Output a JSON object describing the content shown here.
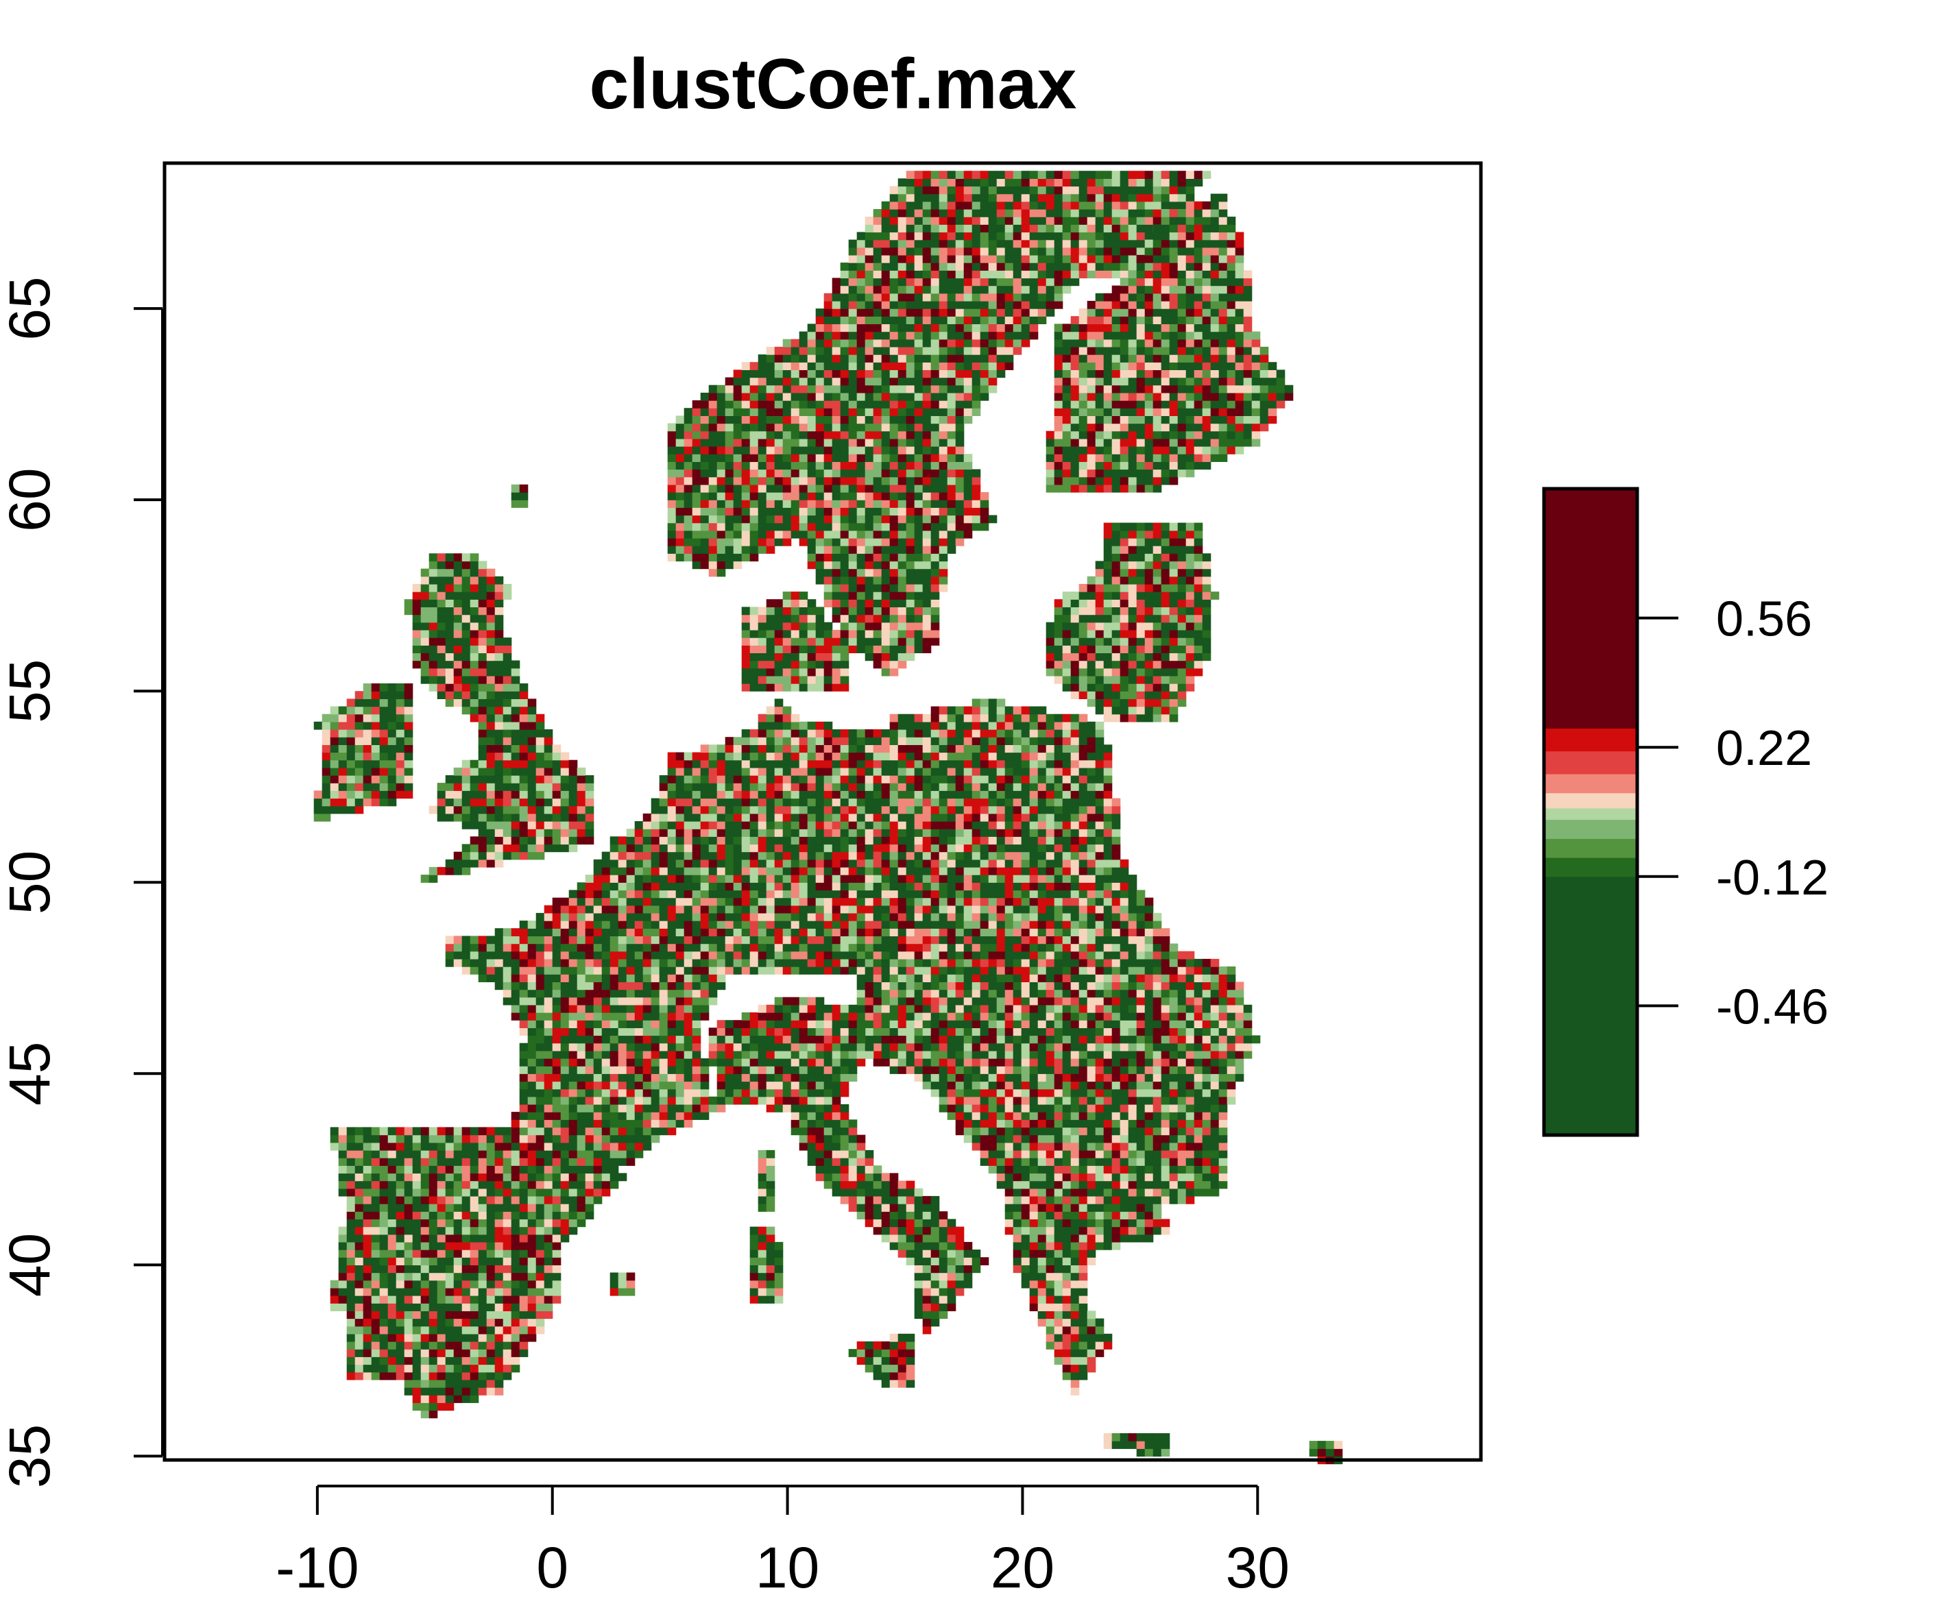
{
  "chart_data": {
    "type": "heatmap",
    "title": "clustCoef.max",
    "xlabel": "",
    "ylabel": "",
    "xlim": [
      -16.5,
      39.5
    ],
    "ylim": [
      34.9,
      68.8
    ],
    "x_ticks": [
      "-10",
      "0",
      "10",
      "20",
      "30"
    ],
    "x_tick_values": [
      -10,
      0,
      10,
      20,
      30
    ],
    "y_ticks": [
      "35",
      "40",
      "45",
      "50",
      "55",
      "60",
      "65"
    ],
    "y_tick_values": [
      35,
      40,
      45,
      50,
      55,
      60,
      65
    ],
    "grid": false,
    "legend_placement": "right",
    "legend": {
      "min": -0.8,
      "max": 0.9,
      "ticks": [
        "0.56",
        "0.22",
        "-0.12",
        "-0.46"
      ],
      "tick_values": [
        0.56,
        0.22,
        -0.12,
        -0.46
      ],
      "bands": [
        {
          "from": -0.8,
          "to": -0.12,
          "color": "#17561f"
        },
        {
          "from": -0.12,
          "to": -0.07,
          "color": "#246b1f"
        },
        {
          "from": -0.07,
          "to": -0.02,
          "color": "#54943f"
        },
        {
          "from": -0.02,
          "to": 0.03,
          "color": "#7fb573"
        },
        {
          "from": 0.03,
          "to": 0.06,
          "color": "#b0d6a2"
        },
        {
          "from": 0.06,
          "to": 0.1,
          "color": "#f7d4be"
        },
        {
          "from": 0.1,
          "to": 0.15,
          "color": "#f1877a"
        },
        {
          "from": 0.15,
          "to": 0.21,
          "color": "#e24141"
        },
        {
          "from": 0.21,
          "to": 0.27,
          "color": "#d20c0c"
        },
        {
          "from": 0.27,
          "to": 0.9,
          "color": "#69000f"
        }
      ]
    },
    "grid_resolution_deg": [
      0.35,
      0.2
    ],
    "regions": [
      {
        "name": "Iberia",
        "polygon": [
          [
            -9.5,
            43.6
          ],
          [
            -1.5,
            43.5
          ],
          [
            3.2,
            42.4
          ],
          [
            0.5,
            40.5
          ],
          [
            0.5,
            39.3
          ],
          [
            -0.5,
            38.3
          ],
          [
            -2.2,
            36.7
          ],
          [
            -5.5,
            36.0
          ],
          [
            -6.5,
            37.0
          ],
          [
            -8.9,
            37.0
          ],
          [
            -8.7,
            38.8
          ],
          [
            -9.5,
            38.8
          ],
          [
            -8.8,
            41.5
          ]
        ]
      },
      {
        "name": "France-Benelux-Germany",
        "polygon": [
          [
            -4.6,
            48.5
          ],
          [
            -1.5,
            48.8
          ],
          [
            1.5,
            50.1
          ],
          [
            2.5,
            51.1
          ],
          [
            4.2,
            51.8
          ],
          [
            5.0,
            53.3
          ],
          [
            7.0,
            53.6
          ],
          [
            8.5,
            54.0
          ],
          [
            9.5,
            54.8
          ],
          [
            10.8,
            54.2
          ],
          [
            14.2,
            53.9
          ],
          [
            14.3,
            51.0
          ],
          [
            13.0,
            50.3
          ],
          [
            13.3,
            48.4
          ],
          [
            12.9,
            47.6
          ],
          [
            10.0,
            47.5
          ],
          [
            7.6,
            47.6
          ],
          [
            6.2,
            46.2
          ],
          [
            7.0,
            44.0
          ],
          [
            4.5,
            43.3
          ],
          [
            3.0,
            42.5
          ],
          [
            -1.7,
            43.3
          ],
          [
            -1.2,
            46.0
          ],
          [
            -2.2,
            47.2
          ],
          [
            -4.4,
            47.9
          ]
        ]
      },
      {
        "name": "Central-East",
        "polygon": [
          [
            14.2,
            54.3
          ],
          [
            18.6,
            54.8
          ],
          [
            23.5,
            54.2
          ],
          [
            24.0,
            52.0
          ],
          [
            24.0,
            51.0
          ],
          [
            26.6,
            48.2
          ],
          [
            29.0,
            47.8
          ],
          [
            30.0,
            45.9
          ],
          [
            28.9,
            44.4
          ],
          [
            28.5,
            41.8
          ],
          [
            26.0,
            41.6
          ],
          [
            26.2,
            40.8
          ],
          [
            23.0,
            40.3
          ],
          [
            22.6,
            39.2
          ],
          [
            23.8,
            38.0
          ],
          [
            22.2,
            36.6
          ],
          [
            21.1,
            37.9
          ],
          [
            19.5,
            40.3
          ],
          [
            19.3,
            41.9
          ],
          [
            15.7,
            44.8
          ],
          [
            13.6,
            45.3
          ],
          [
            13.0,
            46.2
          ],
          [
            12.9,
            47.6
          ],
          [
            13.3,
            48.4
          ],
          [
            13.0,
            50.3
          ],
          [
            14.3,
            51.0
          ]
        ]
      },
      {
        "name": "Italy",
        "polygon": [
          [
            7.0,
            44.0
          ],
          [
            6.7,
            46.2
          ],
          [
            10.0,
            47.0
          ],
          [
            12.9,
            46.8
          ],
          [
            13.6,
            45.6
          ],
          [
            12.3,
            44.3
          ],
          [
            14.0,
            42.5
          ],
          [
            16.2,
            41.8
          ],
          [
            18.4,
            40.1
          ],
          [
            16.6,
            38.5
          ],
          [
            15.7,
            38.0
          ],
          [
            15.3,
            40.0
          ],
          [
            14.0,
            40.8
          ],
          [
            11.2,
            42.4
          ],
          [
            10.0,
            43.9
          ],
          [
            8.3,
            44.3
          ]
        ]
      },
      {
        "name": "Sicily",
        "polygon": [
          [
            12.4,
            37.8
          ],
          [
            15.6,
            38.3
          ],
          [
            15.2,
            36.7
          ],
          [
            14.3,
            36.8
          ]
        ]
      },
      {
        "name": "Sardinia",
        "polygon": [
          [
            8.3,
            41.1
          ],
          [
            9.6,
            41.1
          ],
          [
            9.7,
            39.1
          ],
          [
            8.4,
            38.9
          ]
        ]
      },
      {
        "name": "Corsica",
        "polygon": [
          [
            8.6,
            43.0
          ],
          [
            9.5,
            43.0
          ],
          [
            9.3,
            41.4
          ],
          [
            8.7,
            41.5
          ]
        ]
      },
      {
        "name": "Great Britain",
        "polygon": [
          [
            -5.7,
            50.0
          ],
          [
            1.7,
            51.0
          ],
          [
            1.8,
            52.8
          ],
          [
            0.2,
            53.5
          ],
          [
            -1.5,
            55.6
          ],
          [
            -2.2,
            57.0
          ],
          [
            -1.8,
            57.7
          ],
          [
            -3.2,
            58.6
          ],
          [
            -5.0,
            58.6
          ],
          [
            -6.2,
            57.3
          ],
          [
            -5.8,
            55.6
          ],
          [
            -4.8,
            54.8
          ],
          [
            -3.4,
            54.4
          ],
          [
            -3.0,
            53.4
          ],
          [
            -4.6,
            52.8
          ],
          [
            -5.2,
            51.8
          ],
          [
            -3.0,
            51.3
          ]
        ]
      },
      {
        "name": "Ireland",
        "polygon": [
          [
            -10.2,
            51.6
          ],
          [
            -6.1,
            52.2
          ],
          [
            -5.9,
            54.0
          ],
          [
            -5.8,
            55.2
          ],
          [
            -7.5,
            55.3
          ],
          [
            -10.0,
            54.2
          ],
          [
            -9.8,
            53.0
          ]
        ]
      },
      {
        "name": "Denmark",
        "polygon": [
          [
            8.1,
            55.0
          ],
          [
            12.6,
            55.0
          ],
          [
            12.6,
            56.2
          ],
          [
            10.6,
            57.7
          ],
          [
            8.2,
            57.1
          ]
        ]
      },
      {
        "name": "Scandinavia",
        "polygon": [
          [
            5.0,
            58.5
          ],
          [
            7.0,
            58.0
          ],
          [
            10.5,
            59.0
          ],
          [
            12.5,
            56.2
          ],
          [
            14.3,
            55.4
          ],
          [
            16.4,
            56.3
          ],
          [
            16.8,
            58.5
          ],
          [
            18.8,
            59.5
          ],
          [
            17.4,
            61.7
          ],
          [
            19.5,
            63.5
          ],
          [
            22.5,
            65.8
          ],
          [
            25.0,
            65.8
          ],
          [
            28.0,
            68.6
          ],
          [
            20.0,
            69.0
          ],
          [
            15.0,
            68.5
          ],
          [
            13.0,
            67.0
          ],
          [
            11.0,
            64.5
          ],
          [
            8.0,
            63.5
          ],
          [
            5.0,
            62.0
          ]
        ]
      },
      {
        "name": "Finland",
        "polygon": [
          [
            21.0,
            60.3
          ],
          [
            26.0,
            60.3
          ],
          [
            30.0,
            61.5
          ],
          [
            31.5,
            62.8
          ],
          [
            29.8,
            64.5
          ],
          [
            29.5,
            66.5
          ],
          [
            28.5,
            68.0
          ],
          [
            26.0,
            67.5
          ],
          [
            24.5,
            65.9
          ],
          [
            21.5,
            64.5
          ],
          [
            21.2,
            62.0
          ]
        ]
      },
      {
        "name": "Baltics",
        "polygon": [
          [
            21.0,
            55.5
          ],
          [
            23.6,
            54.2
          ],
          [
            26.5,
            54.3
          ],
          [
            28.0,
            56.0
          ],
          [
            28.2,
            57.5
          ],
          [
            27.5,
            59.4
          ],
          [
            23.5,
            59.4
          ],
          [
            23.2,
            58.0
          ],
          [
            21.6,
            57.5
          ],
          [
            21.0,
            56.5
          ]
        ]
      },
      {
        "name": "Crete",
        "polygon": [
          [
            23.5,
            35.6
          ],
          [
            26.2,
            35.6
          ],
          [
            26.2,
            35.0
          ],
          [
            23.6,
            35.2
          ]
        ]
      },
      {
        "name": "Cyprus",
        "polygon": [
          [
            32.2,
            35.3
          ],
          [
            33.7,
            35.4
          ],
          [
            33.5,
            34.9
          ],
          [
            32.4,
            34.9
          ]
        ]
      },
      {
        "name": "Shetland",
        "polygon": [
          [
            -1.8,
            60.5
          ],
          [
            -0.9,
            60.5
          ],
          [
            -0.9,
            59.9
          ],
          [
            -1.6,
            59.9
          ]
        ]
      },
      {
        "name": "Balearics",
        "polygon": [
          [
            2.3,
            39.8
          ],
          [
            3.6,
            39.9
          ],
          [
            3.4,
            39.3
          ],
          [
            2.4,
            39.3
          ]
        ]
      }
    ]
  }
}
